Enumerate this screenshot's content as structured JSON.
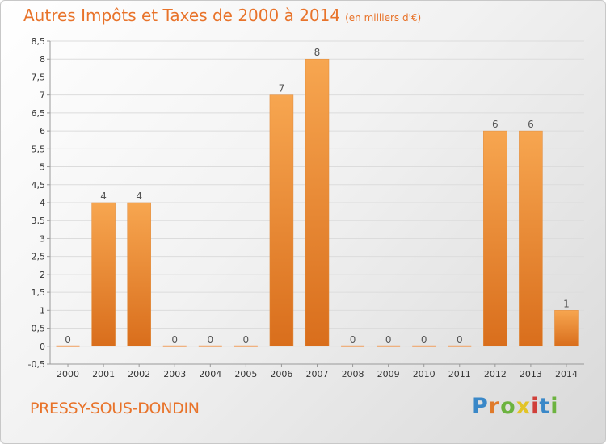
{
  "chart_data": {
    "type": "bar",
    "title": "Autres Impôts et Taxes de 2000 à 2014",
    "unit_note": "(en milliers d'€)",
    "categories": [
      "2000",
      "2001",
      "2002",
      "2003",
      "2004",
      "2005",
      "2006",
      "2007",
      "2008",
      "2009",
      "2010",
      "2011",
      "2012",
      "2013",
      "2014"
    ],
    "values": [
      0,
      4,
      4,
      0,
      0,
      0,
      7,
      8,
      0,
      0,
      0,
      0,
      6,
      6,
      1
    ],
    "ylim": [
      -0.5,
      8.5
    ],
    "yticks": [
      "-0,5",
      "0",
      "0,5",
      "1",
      "1,5",
      "2",
      "2,5",
      "3",
      "3,5",
      "4",
      "4,5",
      "5",
      "5,5",
      "6",
      "6,5",
      "7",
      "7,5",
      "8",
      "8,5"
    ],
    "ytick_values": [
      -0.5,
      0,
      0.5,
      1,
      1.5,
      2,
      2.5,
      3,
      3.5,
      4,
      4.5,
      5,
      5.5,
      6,
      6.5,
      7,
      7.5,
      8,
      8.5
    ],
    "grid": true,
    "bar_color": "#f0903a"
  },
  "footer": {
    "place": "PRESSY-SOUS-DONDIN",
    "logo": {
      "p": "P",
      "r": "r",
      "o": "o",
      "x": "x",
      "i1": "i",
      "t": "t",
      "i2": "i"
    }
  }
}
